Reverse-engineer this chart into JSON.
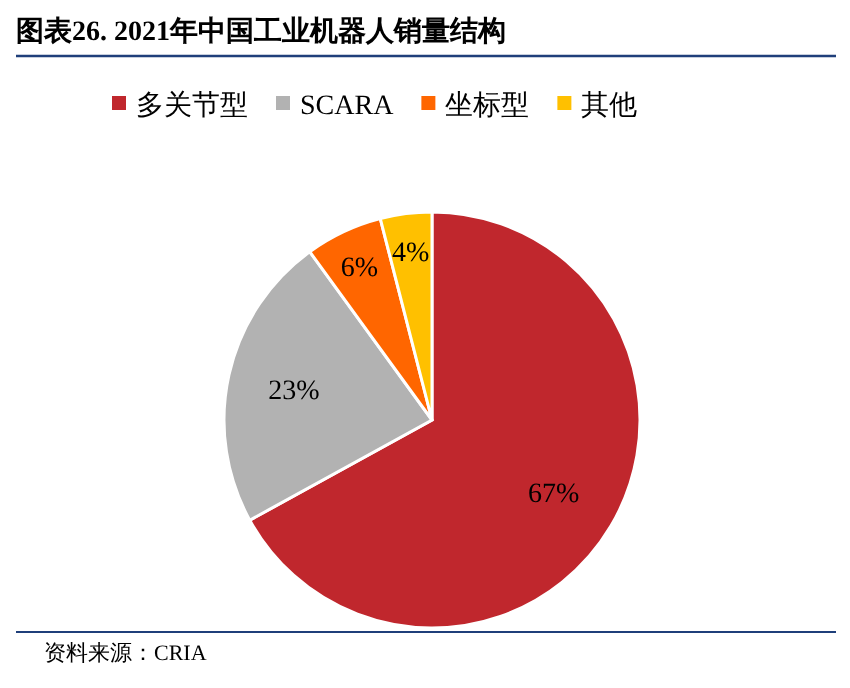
{
  "chart_data": {
    "type": "pie",
    "title": "图表26. 2021年中国工业机器人销量结构",
    "categories": [
      "多关节型",
      "SCARA",
      "坐标型",
      "其他"
    ],
    "values": [
      67,
      23,
      6,
      4
    ],
    "value_labels": [
      "67%",
      "23%",
      "6%",
      "4%"
    ],
    "colors": [
      "#c0272d",
      "#b2b2b2",
      "#ff6600",
      "#ffc000"
    ],
    "legend": "top",
    "annotations": [
      "资料来源：CRIA"
    ]
  }
}
